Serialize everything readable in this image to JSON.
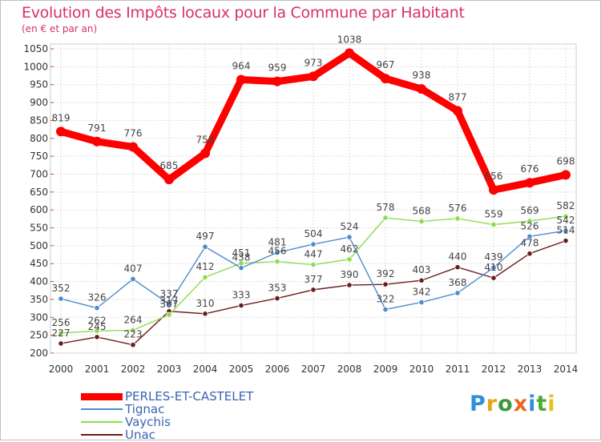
{
  "header": {
    "title": "Evolution des Impôts locaux pour la Commune par Habitant",
    "subtitle": "(en € et par an)"
  },
  "chart_data": {
    "type": "line",
    "title": "Evolution des Impôts locaux pour la Commune par Habitant",
    "subtitle": "(en € et par an)",
    "xlabel": "",
    "ylabel": "",
    "ylim": [
      200,
      1050
    ],
    "yticks": [
      200,
      250,
      300,
      350,
      400,
      450,
      500,
      550,
      600,
      650,
      700,
      750,
      800,
      850,
      900,
      950,
      1000,
      1050
    ],
    "grid": true,
    "legend_position": "bottom-left",
    "categories": [
      "2000",
      "2001",
      "2002",
      "2003",
      "2004",
      "2005",
      "2006",
      "2007",
      "2008",
      "2009",
      "2010",
      "2011",
      "2012",
      "2013",
      "2014"
    ],
    "series": [
      {
        "name": "PERLES-ET-CASTELET",
        "color": "#ff0000",
        "values": [
          819,
          791,
          776,
          685,
          758,
          964,
          959,
          973,
          1038,
          967,
          938,
          877,
          656,
          676,
          698
        ]
      },
      {
        "name": "Tignac",
        "color": "#4c8cce",
        "values": [
          352,
          326,
          407,
          337,
          497,
          438,
          481,
          504,
          524,
          322,
          342,
          368,
          439,
          526,
          542
        ]
      },
      {
        "name": "Vaychis",
        "color": "#8edb4f",
        "values": [
          256,
          262,
          264,
          307,
          412,
          451,
          456,
          447,
          462,
          578,
          568,
          576,
          559,
          569,
          582
        ]
      },
      {
        "name": "Unac",
        "color": "#6b1d1d",
        "values": [
          227,
          245,
          223,
          317,
          310,
          333,
          353,
          377,
          390,
          392,
          403,
          440,
          410,
          478,
          514
        ]
      }
    ]
  },
  "logo": {
    "letters": [
      "P",
      "r",
      "o",
      "x",
      "i",
      "t",
      "i"
    ],
    "colors": [
      "#2f8fd8",
      "#e8a21c",
      "#3a9a3a",
      "#e86a1c",
      "#2f8fd8",
      "#4aaa3a",
      "#e8c21c"
    ]
  }
}
